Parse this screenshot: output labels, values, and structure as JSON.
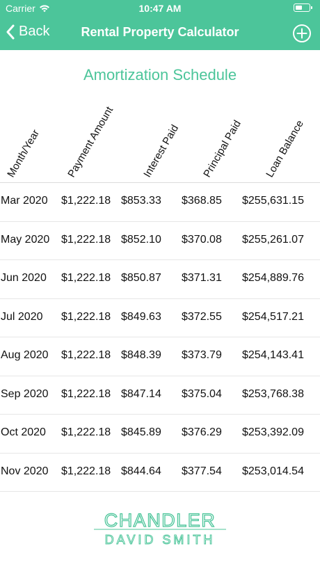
{
  "status_bar": {
    "carrier": "Carrier",
    "time": "10:47 AM",
    "battery_fraction": 0.55,
    "wifi_icon": "wifi-icon",
    "battery_icon": "battery-icon"
  },
  "nav": {
    "back_label": "Back",
    "title": "Rental Property Calculator",
    "add_icon": "plus-circle-icon"
  },
  "schedule": {
    "title": "Amortization Schedule",
    "columns": [
      "Month/Year",
      "Payment Amount",
      "Interest Paid",
      "Principal Paid",
      "Loan Balance"
    ],
    "rows": [
      [
        "Mar 2020",
        "$1,222.18",
        "$853.33",
        "$368.85",
        "$255,631.15"
      ],
      [
        "May 2020",
        "$1,222.18",
        "$852.10",
        "$370.08",
        "$255,261.07"
      ],
      [
        "Jun 2020",
        "$1,222.18",
        "$850.87",
        "$371.31",
        "$254,889.76"
      ],
      [
        "Jul 2020",
        "$1,222.18",
        "$849.63",
        "$372.55",
        "$254,517.21"
      ],
      [
        "Aug 2020",
        "$1,222.18",
        "$848.39",
        "$373.79",
        "$254,143.41"
      ],
      [
        "Sep 2020",
        "$1,222.18",
        "$847.14",
        "$375.04",
        "$253,768.38"
      ],
      [
        "Oct 2020",
        "$1,222.18",
        "$845.89",
        "$376.29",
        "$253,392.09"
      ],
      [
        "Nov 2020",
        "$1,222.18",
        "$844.64",
        "$377.54",
        "$253,014.54"
      ]
    ]
  },
  "logo": {
    "line1": "CHANDLER",
    "line2": "DAVID SMITH",
    "color": "#4cc59a"
  },
  "colors": {
    "accent": "#4cc59a",
    "header_text": "#ffffff"
  }
}
